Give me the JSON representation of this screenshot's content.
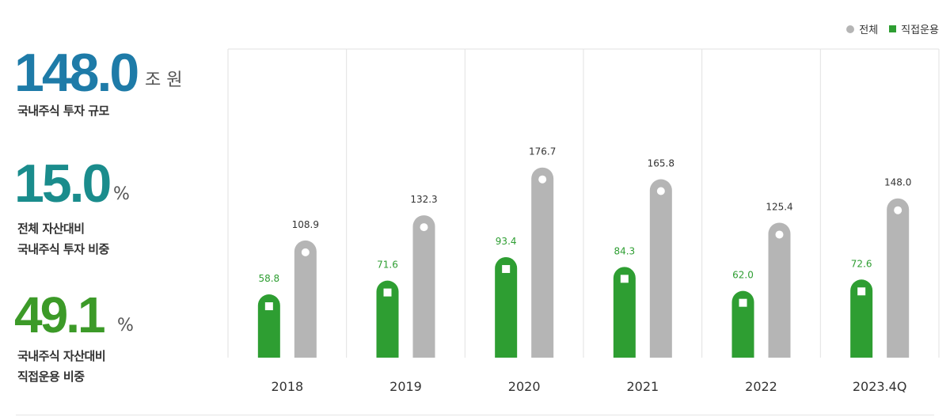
{
  "kpis": [
    {
      "value": "148.0",
      "unit": "조 원",
      "caption_lines": [
        "국내주식 투자 규모"
      ]
    },
    {
      "value": "15.0",
      "unit": "%",
      "caption_lines": [
        "전체 자산대비",
        "국내주식 투자 비중"
      ]
    },
    {
      "value": "49.1",
      "unit": "%",
      "caption_lines": [
        "국내주식 자산대비",
        "직접운용 비중"
      ]
    }
  ],
  "colors": {
    "total": "#b5b5b5",
    "direct": "#2e9e32",
    "kpi1": "#1e7ba8",
    "kpi2": "#1a8c8c",
    "kpi3": "#3c9a28"
  },
  "chart_data": {
    "type": "bar",
    "categories": [
      "2018",
      "2019",
      "2020",
      "2021",
      "2022",
      "2023.4Q"
    ],
    "series": [
      {
        "name": "직접운용",
        "values": [
          58.8,
          71.6,
          93.4,
          84.3,
          62.0,
          72.6
        ],
        "labels": [
          "58.8",
          "71.6",
          "93.4",
          "84.3",
          "62.0",
          "72.6"
        ]
      },
      {
        "name": "전체",
        "values": [
          108.9,
          132.3,
          176.7,
          165.8,
          125.4,
          148.0
        ],
        "labels": [
          "108.9",
          "132.3",
          "176.7",
          "165.8",
          "125.4",
          "148.0"
        ]
      }
    ],
    "legend": {
      "position": "top-right",
      "items": [
        "전체",
        "직접운용"
      ]
    },
    "grid": true
  }
}
